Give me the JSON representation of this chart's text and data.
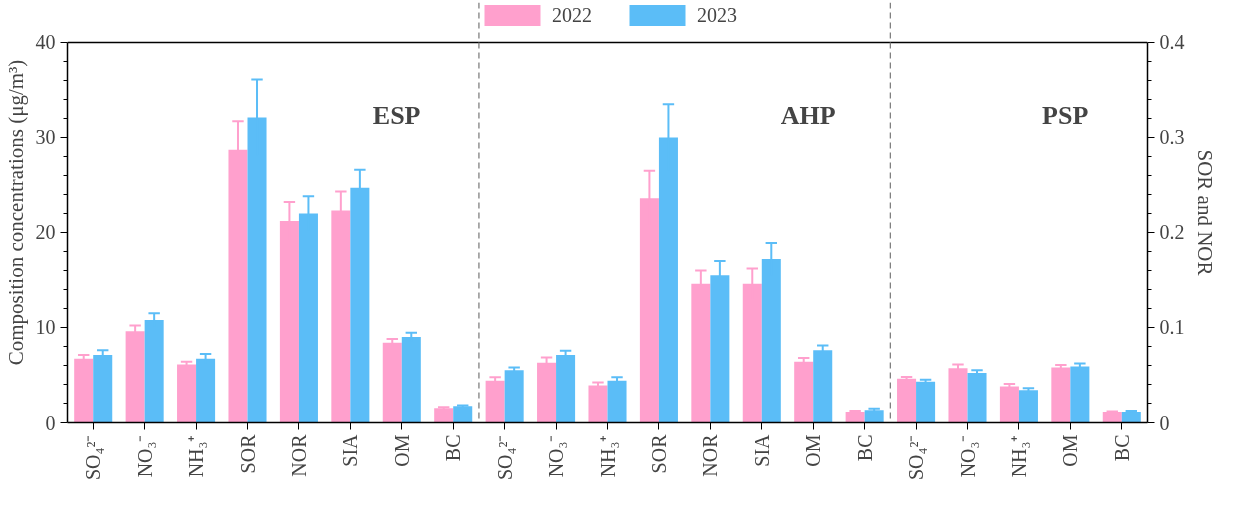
{
  "chart_data": {
    "type": "bar",
    "ylabel": "Composition concentrations (μg/m³)",
    "y2label": "SOR and NOR",
    "categories": [
      "SO₄²⁻",
      "NO₃⁻",
      "NH₃⁺",
      "SOR",
      "NOR",
      "SIA",
      "OM",
      "BC",
      "SO₄²⁻",
      "NO₃⁻",
      "NH₃⁺",
      "SOR",
      "NOR",
      "SIA",
      "OM",
      "BC",
      "SO₄²⁻",
      "NO₃⁻",
      "NH₃⁺",
      "OM",
      "BC"
    ],
    "series": [
      {
        "name": "2022",
        "color": "#ffa0cd",
        "values": [
          6.7,
          9.6,
          6.1,
          null,
          null,
          22.3,
          8.4,
          1.5,
          4.4,
          6.3,
          3.9,
          null,
          null,
          14.6,
          6.4,
          1.1,
          4.6,
          5.7,
          3.8,
          5.8,
          1.1
        ],
        "errors": [
          0.4,
          0.6,
          0.3,
          null,
          null,
          2.0,
          0.4,
          0.1,
          0.35,
          0.55,
          0.3,
          null,
          null,
          1.6,
          0.4,
          0.1,
          0.2,
          0.4,
          0.25,
          0.25,
          0.07
        ]
      },
      {
        "name": "2023",
        "color": "#5bbdf7",
        "values": [
          7.1,
          10.8,
          6.7,
          null,
          null,
          24.7,
          9.0,
          1.7,
          5.5,
          7.1,
          4.4,
          null,
          null,
          17.2,
          7.6,
          1.3,
          4.3,
          5.2,
          3.4,
          5.9,
          1.1
        ],
        "errors": [
          0.5,
          0.7,
          0.5,
          null,
          null,
          1.9,
          0.45,
          0.08,
          0.3,
          0.45,
          0.35,
          null,
          null,
          1.7,
          0.5,
          0.14,
          0.2,
          0.3,
          0.2,
          0.3,
          0.1
        ]
      },
      {
        "color": "#ffa0cd",
        "axis": "y2",
        "values": [
          null,
          null,
          null,
          0.287,
          0.212,
          null,
          null,
          null,
          null,
          null,
          null,
          0.236,
          0.146,
          null,
          null,
          null,
          null,
          null,
          null,
          null,
          null
        ],
        "errors": [
          null,
          null,
          null,
          0.03,
          0.02,
          null,
          null,
          null,
          null,
          null,
          null,
          0.029,
          0.014,
          null,
          null,
          null,
          null,
          null,
          null,
          null,
          null
        ]
      },
      {
        "color": "#5bbdf7",
        "axis": "y2",
        "values": [
          null,
          null,
          null,
          0.321,
          0.22,
          null,
          null,
          null,
          null,
          null,
          null,
          0.3,
          0.155,
          null,
          null,
          null,
          null,
          null,
          null,
          null,
          null
        ],
        "errors": [
          null,
          null,
          null,
          0.04,
          0.018,
          null,
          null,
          null,
          null,
          null,
          null,
          0.035,
          0.015,
          null,
          null,
          null,
          null,
          null,
          null,
          null,
          null
        ]
      }
    ],
    "ylim": [
      0,
      40
    ],
    "yticks": [
      0,
      10,
      20,
      30,
      40
    ],
    "y2lim": [
      0,
      0.4
    ],
    "y2ticks": [
      0,
      0.1,
      0.2,
      0.3,
      0.4
    ],
    "annotations": [
      "ESP",
      "AHP",
      "PSP"
    ],
    "legend": "top",
    "grid": false
  }
}
